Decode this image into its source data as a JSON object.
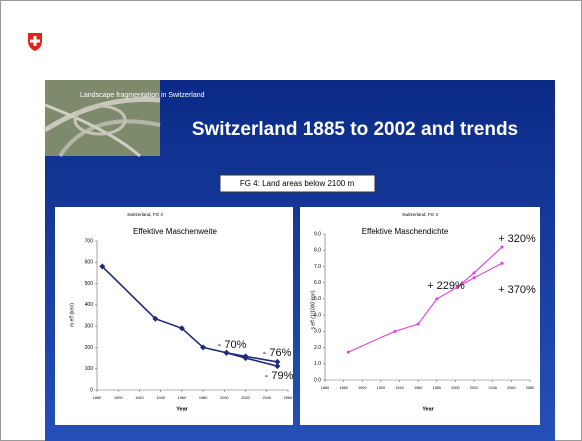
{
  "header": {
    "small_title": "Landscape fragmentation in Switzerland",
    "title": "Switzerland 1885 to 2002 and trends",
    "subtitle": "FG 4: Land areas below 2100 m"
  },
  "chart_data": [
    {
      "type": "line",
      "caption": "Switzerland, FG 4",
      "title": "Effektive Maschenweite",
      "y_label": "m eff (km²)",
      "x_label": "Year",
      "xlim": [
        1880,
        2060
      ],
      "xticks": [
        1880,
        1900,
        1920,
        1940,
        1960,
        1980,
        2000,
        2020,
        2040,
        2060
      ],
      "ylim": [
        0,
        700
      ],
      "yticks": [
        0,
        100,
        200,
        300,
        400,
        500,
        600,
        700
      ],
      "color": "#1f2a7a",
      "marker": "diamond",
      "series": [
        {
          "x": [
            1885,
            1935,
            1960,
            1980,
            2002
          ],
          "values": [
            580,
            335,
            290,
            200,
            175
          ]
        },
        {
          "x": [
            2002,
            2020,
            2050
          ],
          "values": [
            175,
            158,
            132
          ]
        },
        {
          "x": [
            2002,
            2020,
            2050
          ],
          "values": [
            175,
            150,
            112
          ]
        }
      ],
      "annotations": [
        "- 70%",
        "- 76%",
        "- 79%"
      ]
    },
    {
      "type": "line",
      "caption": "Switzerland, FG 4",
      "title": "Effektive Maschendichte",
      "y_label": "s eff (1/1000 km²)",
      "x_label": "Year",
      "xlim": [
        1860,
        2080
      ],
      "xticks": [
        1860,
        1880,
        1900,
        1920,
        1940,
        1960,
        1980,
        2000,
        2020,
        2040,
        2060,
        2080
      ],
      "ylim": [
        0,
        9
      ],
      "yticks": [
        {
          "value": 0,
          "label": "0.0"
        },
        {
          "value": 1,
          "label": "1.0"
        },
        {
          "value": 2,
          "label": "2.0"
        },
        {
          "value": 3,
          "label": "3.0"
        },
        {
          "value": 4,
          "label": "4.0"
        },
        {
          "value": 5,
          "label": "5.0"
        },
        {
          "value": 6,
          "label": "6.0"
        },
        {
          "value": 7,
          "label": "7.0"
        },
        {
          "value": 8,
          "label": "8.0"
        },
        {
          "value": 9,
          "label": "9.0"
        }
      ],
      "color": "#e040e0",
      "marker": "dot",
      "series": [
        {
          "x": [
            1885,
            1935,
            1960,
            1980,
            2002
          ],
          "values": [
            1.72,
            3.0,
            3.45,
            5.0,
            5.72
          ]
        },
        {
          "x": [
            2002,
            2020,
            2050
          ],
          "values": [
            5.72,
            6.6,
            8.2
          ]
        },
        {
          "x": [
            2002,
            2020,
            2050
          ],
          "values": [
            5.72,
            6.3,
            7.2
          ]
        }
      ],
      "annotations": [
        "+ 320%",
        "+ 229%",
        "+ 370%"
      ]
    }
  ]
}
